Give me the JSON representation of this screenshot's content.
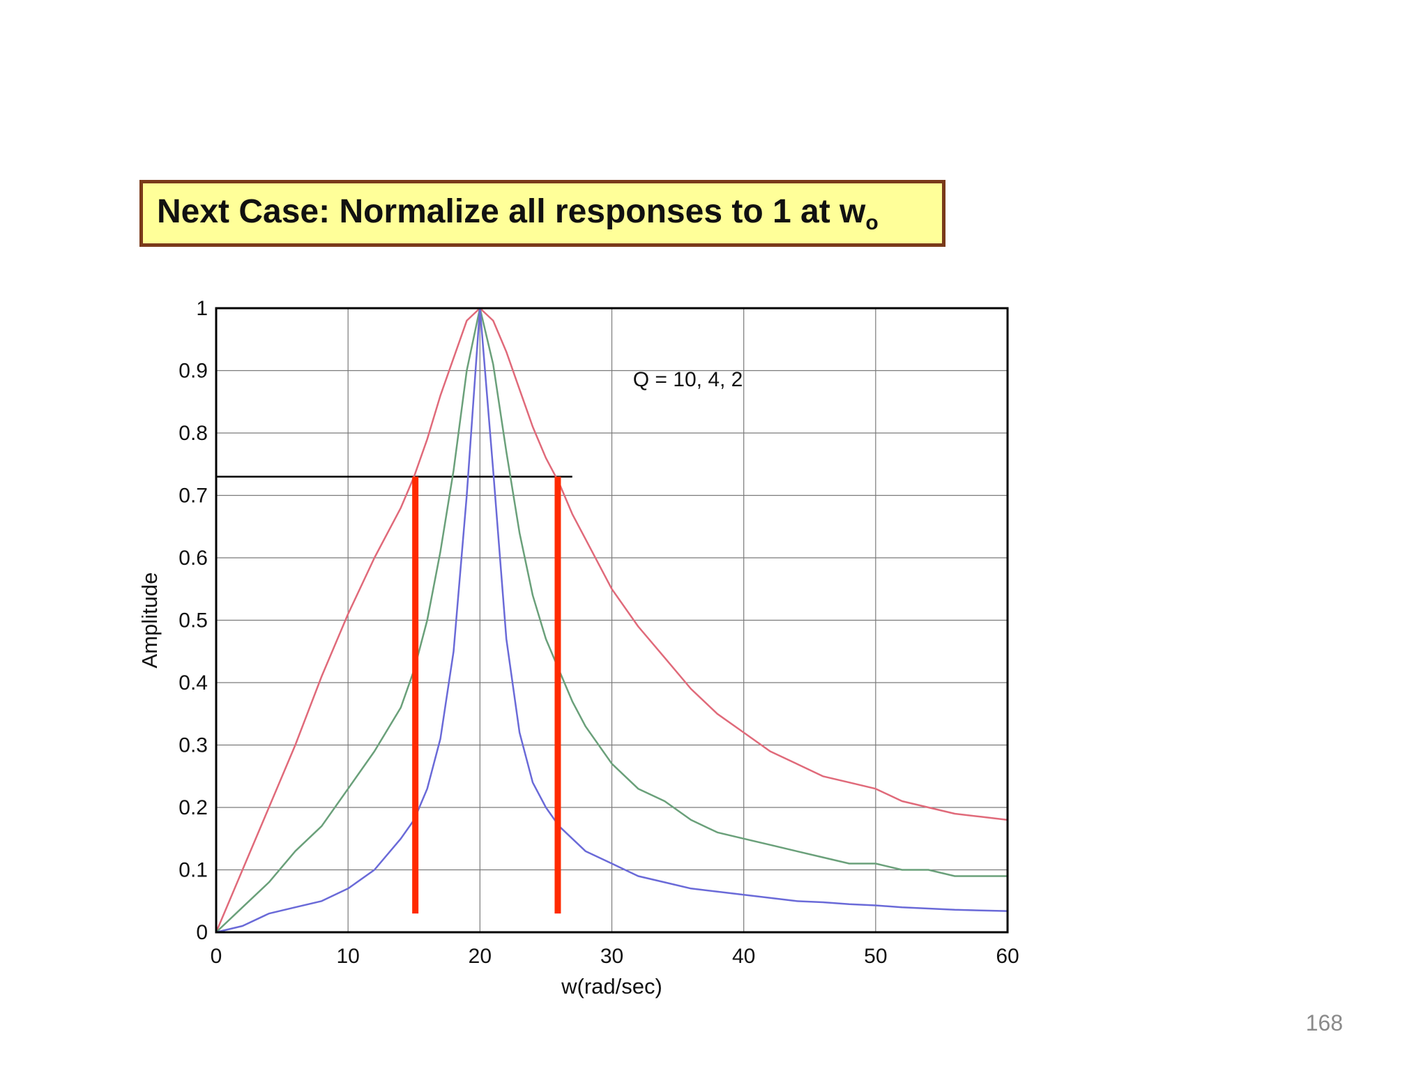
{
  "slide": {
    "title_main": "Next Case:  Normalize all responses to 1 at w",
    "title_sub": "o",
    "page_number": "168"
  },
  "chart_data": {
    "type": "line",
    "xlabel": "w(rad/sec)",
    "ylabel": "Amplitude",
    "xlim": [
      0,
      60
    ],
    "ylim": [
      0,
      1
    ],
    "x_ticks": [
      "0",
      "10",
      "20",
      "30",
      "40",
      "50",
      "60"
    ],
    "y_ticks": [
      "0",
      "0.1",
      "0.2",
      "0.3",
      "0.4",
      "0.5",
      "0.6",
      "0.7",
      "0.8",
      "0.9",
      "1"
    ],
    "grid": true,
    "annotation": "Q = 10, 4,  2",
    "x": [
      0,
      2,
      4,
      6,
      8,
      10,
      12,
      14,
      15,
      16,
      17,
      18,
      19,
      20,
      21,
      22,
      23,
      24,
      25,
      26,
      27,
      28,
      30,
      32,
      34,
      36,
      38,
      40,
      42,
      44,
      46,
      48,
      50,
      52,
      54,
      56,
      58,
      60
    ],
    "series": [
      {
        "color": "#e06a7a",
        "values": [
          0,
          0.1,
          0.2,
          0.3,
          0.41,
          0.51,
          0.6,
          0.68,
          0.73,
          0.79,
          0.86,
          0.92,
          0.98,
          1.0,
          0.98,
          0.93,
          0.87,
          0.81,
          0.76,
          0.72,
          0.67,
          0.63,
          0.55,
          0.49,
          0.44,
          0.39,
          0.35,
          0.32,
          0.29,
          0.27,
          0.25,
          0.24,
          0.23,
          0.21,
          0.2,
          0.19,
          0.185,
          0.18
        ]
      },
      {
        "color": "#6aa07a",
        "values": [
          0,
          0.04,
          0.08,
          0.13,
          0.17,
          0.23,
          0.29,
          0.36,
          0.42,
          0.5,
          0.61,
          0.74,
          0.9,
          1.0,
          0.91,
          0.77,
          0.64,
          0.54,
          0.47,
          0.42,
          0.37,
          0.33,
          0.27,
          0.23,
          0.21,
          0.18,
          0.16,
          0.15,
          0.14,
          0.13,
          0.12,
          0.11,
          0.11,
          0.1,
          0.1,
          0.09,
          0.09,
          0.09
        ]
      },
      {
        "color": "#6a6ad8",
        "values": [
          0,
          0.01,
          0.03,
          0.04,
          0.05,
          0.07,
          0.1,
          0.15,
          0.18,
          0.23,
          0.31,
          0.45,
          0.7,
          1.0,
          0.74,
          0.47,
          0.32,
          0.24,
          0.2,
          0.17,
          0.15,
          0.13,
          0.11,
          0.09,
          0.08,
          0.07,
          0.065,
          0.06,
          0.055,
          0.05,
          0.048,
          0.045,
          0.043,
          0.04,
          0.038,
          0.036,
          0.035,
          0.034
        ]
      }
    ],
    "reference_line": {
      "y": 0.73,
      "x_range": [
        0,
        27
      ],
      "color": "#000000"
    },
    "markers": [
      {
        "x": 15.1,
        "y_range": [
          0.03,
          0.73
        ],
        "color": "#ff2a00"
      },
      {
        "x": 25.9,
        "y_range": [
          0.03,
          0.73
        ],
        "color": "#ff2a00"
      }
    ]
  }
}
